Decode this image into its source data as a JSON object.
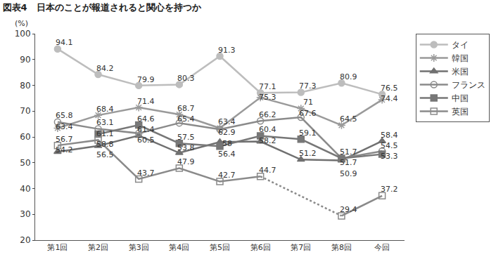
{
  "chart_data": {
    "type": "line",
    "title": "図表4　日本のことが報道されると関心を持つか",
    "y_label": "(%)",
    "categories": [
      "第1回",
      "第2回",
      "第3回",
      "第4回",
      "第5回",
      "第6回",
      "第7回",
      "第8回",
      "今回"
    ],
    "series": [
      {
        "name": "タイ",
        "color": "#bdbdbd",
        "marker": "circle",
        "values": [
          94.1,
          84.2,
          79.9,
          80.3,
          91.3,
          77.1,
          77.3,
          80.9,
          76.5
        ]
      },
      {
        "name": "韓国",
        "color": "#9a9a9a",
        "marker": "asterisk",
        "values": [
          63.4,
          68.4,
          71.4,
          68.7,
          63.4,
          75.3,
          71.0,
          64.5,
          74.4
        ]
      },
      {
        "name": "米国",
        "color": "#707070",
        "marker": "triangle",
        "values": [
          54.2,
          56.5,
          60.5,
          53.8,
          58.0,
          58.2,
          51.2,
          50.9,
          58.4
        ]
      },
      {
        "name": "フランス",
        "color": "#8a8a8a",
        "marker": "circle-open",
        "values": [
          65.8,
          63.1,
          61.4,
          65.4,
          62.9,
          66.2,
          67.6,
          51.7,
          54.5
        ]
      },
      {
        "name": "中国",
        "color": "#777777",
        "marker": "square",
        "values": [
          null,
          61.1,
          64.6,
          57.5,
          56.4,
          60.4,
          59.1,
          51.7,
          53.3
        ]
      },
      {
        "name": "英国",
        "color": "#8a8a8a",
        "marker": "square-open",
        "values": [
          56.7,
          58.8,
          43.7,
          47.9,
          42.7,
          44.7,
          null,
          29.4,
          37.2
        ]
      }
    ],
    "ylim": [
      20,
      100
    ],
    "yticks": [
      20,
      30,
      40,
      50,
      60,
      70,
      80,
      90,
      100
    ],
    "grid": false,
    "legend": "right",
    "data_labels": true
  }
}
